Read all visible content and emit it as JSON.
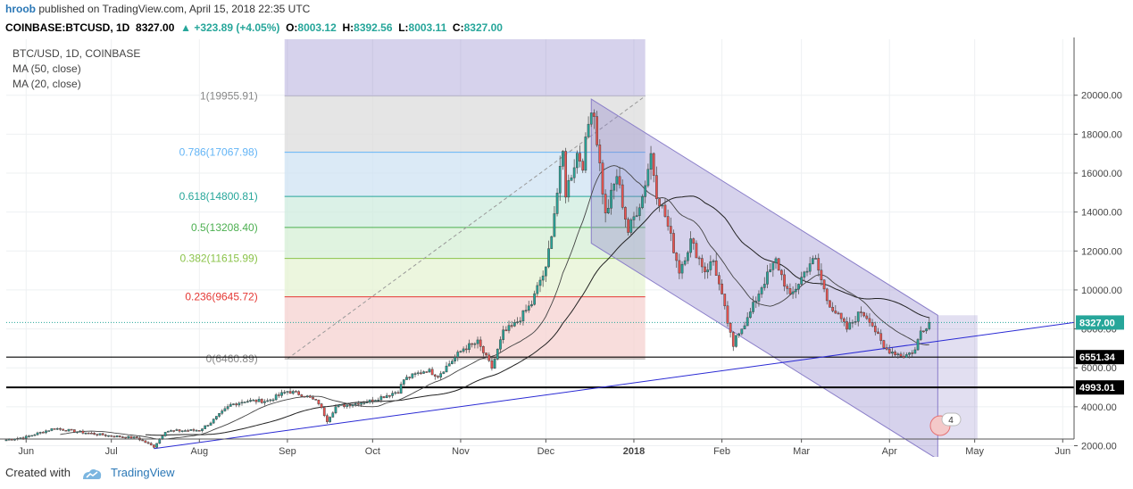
{
  "header": {
    "author": "hroob",
    "published_text": "published on TradingView.com, April 15, 2018 22:35 UTC"
  },
  "symbol_bar": {
    "symbol": "COINBASE:BTCUSD, 1D",
    "last": "8327.00",
    "change": "+323.89 (+4.05%)",
    "o_label": "O:",
    "o": "8003.12",
    "h_label": "H:",
    "h": "8392.56",
    "l_label": "L:",
    "l": "8003.11",
    "c_label": "C:",
    "c": "8327.00"
  },
  "legend": {
    "line1": "BTC/USD, 1D, COINBASE",
    "line2": "MA (50, close)",
    "line3": "MA (20, close)"
  },
  "footer": {
    "created_with": "Created with",
    "brand": "TradingView"
  },
  "badge_count": "4",
  "colors": {
    "up": "#26a69a",
    "down": "#ef5350",
    "channel": "#8a7ec9",
    "trendline": "#2a2ad4",
    "fib_1": "#c8c8c8",
    "fib_0786": "#64b5f6",
    "fib_0618": "#26a69a",
    "fib_05": "#4caf50",
    "fib_0382": "#8bc34a",
    "fib_0236": "#e53935",
    "fib_0": "#9e9e9e"
  },
  "chart_data": {
    "type": "candlestick",
    "title": "BTC/USD, 1D, COINBASE",
    "ylim": [
      0,
      21000
    ],
    "y_ticks": [
      "2000.00",
      "4000.00",
      "6000.00",
      "8000.00",
      "10000.00",
      "12000.00",
      "14000.00",
      "16000.00",
      "18000.00",
      "20000.00"
    ],
    "x_ticks": [
      "Jun",
      "Jul",
      "Aug",
      "Sep",
      "Oct",
      "Nov",
      "Dec",
      "2018",
      "Feb",
      "Mar",
      "Apr",
      "May",
      "Jun"
    ],
    "price_labels": [
      {
        "value": 8327.0,
        "text": "8327.00",
        "color": "#26a69a"
      },
      {
        "value": 6551.34,
        "text": "6551.34",
        "color": "#000000"
      },
      {
        "value": 4993.01,
        "text": "4993.01",
        "color": "#000000"
      }
    ],
    "fibonacci": {
      "high": 19955.91,
      "low": 6460.89,
      "levels": [
        {
          "ratio": "1",
          "value": 19955.91,
          "label": "1(19955.91)"
        },
        {
          "ratio": "0.786",
          "value": 17067.98,
          "label": "0.786(17067.98)"
        },
        {
          "ratio": "0.618",
          "value": 14800.81,
          "label": "0.618(14800.81)"
        },
        {
          "ratio": "0.5",
          "value": 13208.4,
          "label": "0.5(13208.40)"
        },
        {
          "ratio": "0.382",
          "value": 11615.99,
          "label": "0.382(11615.99)"
        },
        {
          "ratio": "0.236",
          "value": 9645.72,
          "label": "0.236(9645.72)"
        },
        {
          "ratio": "0",
          "value": 6460.89,
          "label": "0(6460.89)"
        }
      ]
    },
    "horizontal_lines": [
      6551.34,
      4993.01
    ],
    "series": [
      {
        "name": "BTC/USD",
        "anchors": [
          [
            "2017-05-25",
            2300
          ],
          [
            "2017-06-01",
            2450
          ],
          [
            "2017-06-11",
            2900
          ],
          [
            "2017-06-20",
            2700
          ],
          [
            "2017-07-01",
            2500
          ],
          [
            "2017-07-10",
            2400
          ],
          [
            "2017-07-16",
            1950
          ],
          [
            "2017-07-20",
            2750
          ],
          [
            "2017-08-01",
            2800
          ],
          [
            "2017-08-05",
            3200
          ],
          [
            "2017-08-12",
            4100
          ],
          [
            "2017-08-17",
            4300
          ],
          [
            "2017-08-25",
            4300
          ],
          [
            "2017-09-01",
            4800
          ],
          [
            "2017-09-07",
            4600
          ],
          [
            "2017-09-12",
            4200
          ],
          [
            "2017-09-15",
            3300
          ],
          [
            "2017-09-18",
            4000
          ],
          [
            "2017-09-30",
            4300
          ],
          [
            "2017-10-10",
            4800
          ],
          [
            "2017-10-12",
            5400
          ],
          [
            "2017-10-20",
            5900
          ],
          [
            "2017-10-24",
            5600
          ],
          [
            "2017-11-02",
            7000
          ],
          [
            "2017-11-07",
            7300
          ],
          [
            "2017-11-12",
            6000
          ],
          [
            "2017-11-16",
            7800
          ],
          [
            "2017-11-20",
            8200
          ],
          [
            "2017-11-26",
            9300
          ],
          [
            "2017-11-29",
            10500
          ],
          [
            "2017-12-01",
            11000
          ],
          [
            "2017-12-07",
            17000
          ],
          [
            "2017-12-08",
            15000
          ],
          [
            "2017-12-12",
            17000
          ],
          [
            "2017-12-14",
            16500
          ],
          [
            "2017-12-17",
            19500
          ],
          [
            "2017-12-18",
            19000
          ],
          [
            "2017-12-22",
            13800
          ],
          [
            "2017-12-26",
            15900
          ],
          [
            "2017-12-30",
            13000
          ],
          [
            "2018-01-04",
            14800
          ],
          [
            "2018-01-07",
            17000
          ],
          [
            "2018-01-09",
            15000
          ],
          [
            "2018-01-12",
            13800
          ],
          [
            "2018-01-17",
            11000
          ],
          [
            "2018-01-21",
            12500
          ],
          [
            "2018-01-26",
            11000
          ],
          [
            "2018-01-29",
            11500
          ],
          [
            "2018-02-02",
            9000
          ],
          [
            "2018-02-05",
            7000
          ],
          [
            "2018-02-06",
            7700
          ],
          [
            "2018-02-10",
            8500
          ],
          [
            "2018-02-15",
            10200
          ],
          [
            "2018-02-20",
            11500
          ],
          [
            "2018-02-25",
            9600
          ],
          [
            "2018-03-04",
            11400
          ],
          [
            "2018-03-06",
            11500
          ],
          [
            "2018-03-10",
            9500
          ],
          [
            "2018-03-17",
            8000
          ],
          [
            "2018-03-22",
            8900
          ],
          [
            "2018-03-25",
            8500
          ],
          [
            "2018-03-30",
            7000
          ],
          [
            "2018-04-06",
            6600
          ],
          [
            "2018-04-10",
            6900
          ],
          [
            "2018-04-12",
            7900
          ],
          [
            "2018-04-15",
            8327
          ]
        ]
      }
    ],
    "indicators": [
      "MA (50, close)",
      "MA (20, close)"
    ],
    "drawings": [
      "fibonacci retracement",
      "descending parallel channel",
      "ascending trendline",
      "horizontal support lines"
    ],
    "grid": true,
    "legend_position": "top-left"
  }
}
